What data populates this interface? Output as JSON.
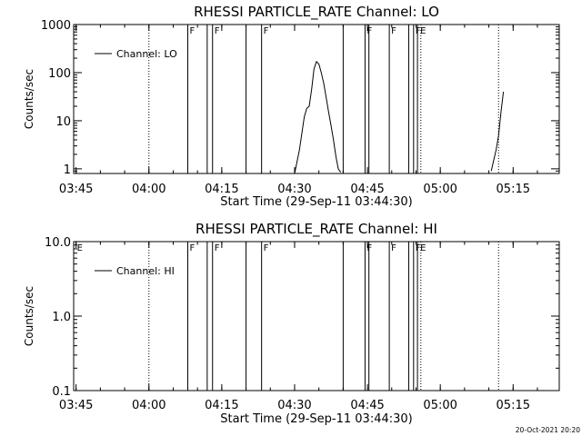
{
  "footer": {
    "timestamp": "20-Oct-2021 20:20"
  },
  "chart_data": [
    {
      "type": "line",
      "title": "RHESSI PARTICLE_RATE Channel: LO",
      "xlabel": "Start Time (29-Sep-11 03:44:30)",
      "ylabel": "Counts/sec",
      "x_unit": "minutes after 03:44:30",
      "xlim": [
        0,
        100
      ],
      "ylim": [
        0.8,
        1000
      ],
      "yscale": "log",
      "x_ticks": [
        "03:45",
        "04:00",
        "04:15",
        "04:30",
        "04:45",
        "05:00",
        "05:15"
      ],
      "y_ticks": [
        "1",
        "10",
        "100",
        "1000"
      ],
      "y_tick_values": [
        1,
        10,
        100,
        1000
      ],
      "legend": {
        "label": "Channel: LO",
        "placement": "top-left"
      },
      "solid_markers": [
        23.5,
        27.5,
        28.6,
        35.5,
        38.7,
        55.5,
        60.0,
        60.8,
        65.0,
        69.0,
        70.0,
        70.8
      ],
      "dotted_markers": [
        15.5,
        71.5,
        87.5
      ],
      "flags": [
        {
          "x": 23.5,
          "label": "F"
        },
        {
          "x": 28.6,
          "label": "F"
        },
        {
          "x": 38.7,
          "label": "F"
        },
        {
          "x": 60.0,
          "label": "F"
        },
        {
          "x": 65.0,
          "label": "F"
        },
        {
          "x": 70.0,
          "label": "F"
        },
        {
          "x": 71.0,
          "label": "E"
        }
      ],
      "series": [
        {
          "x": [
            45.5,
            46.5,
            47.5,
            48.0,
            48.5,
            49.0,
            49.5,
            50.0,
            50.5,
            51.0,
            51.5,
            52.0,
            52.5,
            53.0,
            53.5,
            54.0,
            54.5,
            55.0
          ],
          "values": [
            0.8,
            2.5,
            12,
            18,
            20,
            45,
            120,
            170,
            150,
            100,
            60,
            30,
            15,
            8,
            4,
            1.8,
            1.0,
            0.85
          ]
        },
        {
          "x": [
            86.0,
            86.5,
            87.0,
            87.5,
            88.0,
            88.5
          ],
          "values": [
            0.9,
            1.5,
            2.5,
            5,
            15,
            40
          ]
        }
      ]
    },
    {
      "type": "line",
      "title": "RHESSI PARTICLE_RATE Channel: HI",
      "xlabel": "Start Time (29-Sep-11 03:44:30)",
      "ylabel": "Counts/sec",
      "x_unit": "minutes after 03:44:30",
      "xlim": [
        0,
        100
      ],
      "ylim": [
        0.1,
        10
      ],
      "yscale": "log",
      "x_ticks": [
        "03:45",
        "04:00",
        "04:15",
        "04:30",
        "04:45",
        "05:00",
        "05:15"
      ],
      "y_ticks": [
        "0.1",
        "1.0",
        "10.0"
      ],
      "y_tick_values": [
        0.1,
        1,
        10
      ],
      "legend": {
        "label": "Channel: HI",
        "placement": "top-left"
      },
      "solid_markers": [
        23.5,
        27.5,
        28.6,
        35.5,
        38.7,
        55.5,
        60.0,
        60.8,
        65.0,
        69.0,
        70.0,
        70.8
      ],
      "dotted_markers": [
        15.5,
        71.5,
        87.5
      ],
      "flags": [
        {
          "x": 0.3,
          "label": "E"
        },
        {
          "x": 23.5,
          "label": "F"
        },
        {
          "x": 28.6,
          "label": "F"
        },
        {
          "x": 38.7,
          "label": "F"
        },
        {
          "x": 60.0,
          "label": "F"
        },
        {
          "x": 65.0,
          "label": "F"
        },
        {
          "x": 70.0,
          "label": "F"
        },
        {
          "x": 71.0,
          "label": "E"
        }
      ],
      "series": []
    }
  ]
}
